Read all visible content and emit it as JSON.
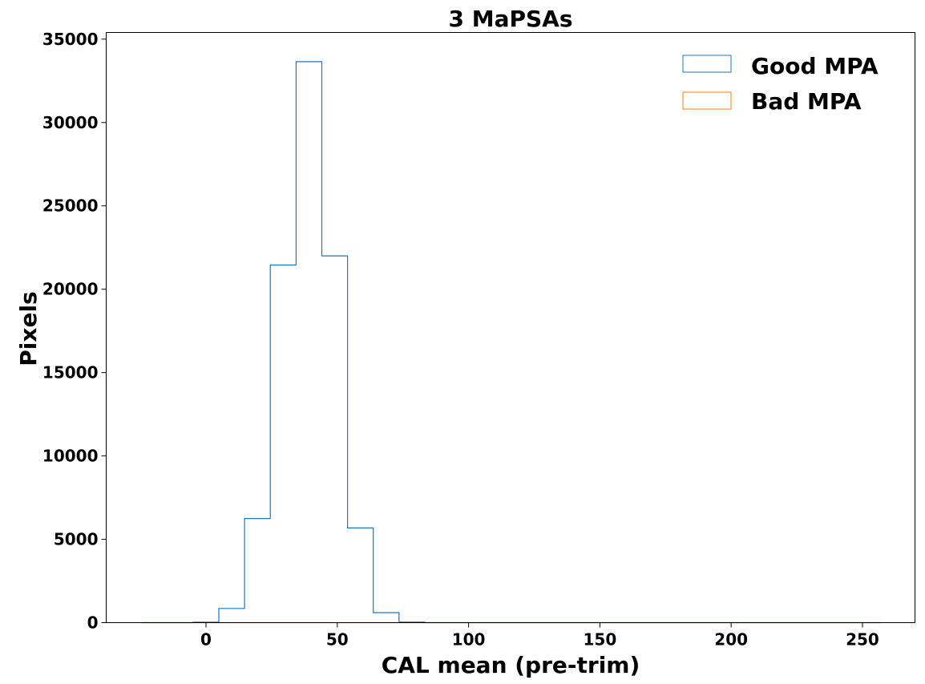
{
  "chart_data": {
    "type": "histogram",
    "title": "3 MaPSAs",
    "xlabel": "CAL mean (pre-trim)",
    "ylabel": "Pixels",
    "xlim": [
      -38,
      270
    ],
    "ylim": [
      0,
      35400
    ],
    "xticks": [
      0,
      50,
      100,
      150,
      200,
      250
    ],
    "yticks": [
      0,
      5000,
      10000,
      15000,
      20000,
      25000,
      30000,
      35000
    ],
    "bin_edges": [
      -24.5,
      -14.7,
      -4.9,
      4.9,
      14.7,
      24.5,
      34.3,
      44.1,
      53.9,
      63.7,
      73.5,
      83.3,
      93.1,
      102.9,
      112.7,
      122.5,
      132.3,
      142.1,
      151.9,
      161.7,
      171.5,
      181.3,
      191.1,
      200.9,
      210.7,
      220.5,
      230.3,
      240.1,
      249.9,
      256.8
    ],
    "legend": {
      "position": "top-right",
      "frame": false
    },
    "grid": false,
    "series": [
      {
        "name": "Good MPA",
        "color": "#1f77b4",
        "style": "step",
        "counts": [
          0,
          0,
          30,
          850,
          6250,
          21450,
          33650,
          22000,
          5680,
          600,
          40,
          0,
          0,
          0,
          0,
          0,
          0,
          0,
          0,
          0,
          0,
          0,
          0,
          0,
          0,
          0,
          0,
          0,
          0
        ]
      },
      {
        "name": "Bad MPA",
        "color": "#ff7f0e",
        "style": "step",
        "counts": [
          0,
          0,
          0,
          0,
          0,
          0,
          0,
          0,
          0,
          0,
          0,
          0,
          0,
          0,
          0,
          0,
          0,
          0,
          0,
          0,
          0,
          0,
          0,
          0,
          0,
          0,
          0,
          0,
          0
        ]
      }
    ]
  }
}
